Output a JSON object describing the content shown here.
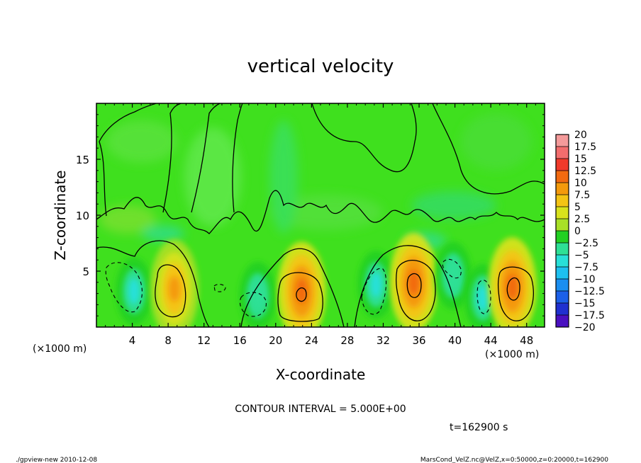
{
  "chart_data": {
    "type": "heatmap",
    "title": "vertical velocity",
    "xlabel": "X-coordinate",
    "ylabel": "Z-coordinate",
    "x_unit_left": "(×1000 m)",
    "x_unit_right": "(×1000 m)",
    "xlim": [
      0,
      50
    ],
    "ylim": [
      0,
      20
    ],
    "x_ticks": [
      4,
      8,
      12,
      16,
      20,
      24,
      28,
      32,
      36,
      40,
      44,
      48
    ],
    "x_tick_labels": [
      "4",
      "8",
      "12",
      "16",
      "20",
      "24",
      "28",
      "32",
      "36",
      "40",
      "44",
      "48"
    ],
    "y_ticks": [
      5,
      10,
      15
    ],
    "y_tick_labels": [
      "5",
      "10",
      "15"
    ],
    "colorbar": {
      "levels": [
        20,
        17.5,
        15,
        12.5,
        10,
        7.5,
        5,
        2.5,
        0,
        -2.5,
        -5,
        -7.5,
        -10,
        -12.5,
        -15,
        -17.5,
        -20
      ],
      "labels": [
        "20",
        "17.5",
        "15",
        "12.5",
        "10",
        "7.5",
        "5",
        "2.5",
        "0",
        "−2.5",
        "−5",
        "−7.5",
        "−10",
        "−12.5",
        "−15",
        "−17.5",
        "−20"
      ],
      "colors": [
        "#f49a9a",
        "#f26d6d",
        "#f03a2a",
        "#f26a10",
        "#f49a0c",
        "#f4c414",
        "#d8e21c",
        "#a8e026",
        "#22d022",
        "#2ee096",
        "#28e0d8",
        "#1ec0f0",
        "#1a8ef0",
        "#1c60e8",
        "#2030d0",
        "#4a10c0"
      ]
    },
    "cells": [
      {
        "x": 4.2,
        "z": 3.2,
        "value": -6,
        "shape": "updraft-core"
      },
      {
        "x": 8.7,
        "z": 3.4,
        "value": 9,
        "shape": "updraft-core"
      },
      {
        "x": 18.0,
        "z": 2.8,
        "value": -5,
        "shape": "downdraft"
      },
      {
        "x": 22.9,
        "z": 3.2,
        "value": 10,
        "shape": "updraft-core"
      },
      {
        "x": 31.2,
        "z": 3.8,
        "value": -7,
        "shape": "downdraft"
      },
      {
        "x": 35.4,
        "z": 4.0,
        "value": 11,
        "shape": "updraft-core"
      },
      {
        "x": 39.8,
        "z": 4.6,
        "value": -5,
        "shape": "downdraft"
      },
      {
        "x": 43.1,
        "z": 2.6,
        "value": -7,
        "shape": "downdraft"
      },
      {
        "x": 46.4,
        "z": 3.6,
        "value": 12,
        "shape": "updraft-core"
      }
    ],
    "contour_interval": "CONTOUR INTERVAL = 5.000E+00",
    "time_label": "t=162900 s"
  },
  "footer": {
    "left": "./gpview-new   2010-12-08",
    "right": "MarsCond_VelZ.nc@VelZ,x=0:50000,z=0:20000,t=162900"
  },
  "colors": {
    "background_field": "#3fe01e",
    "frame": "#000000"
  }
}
